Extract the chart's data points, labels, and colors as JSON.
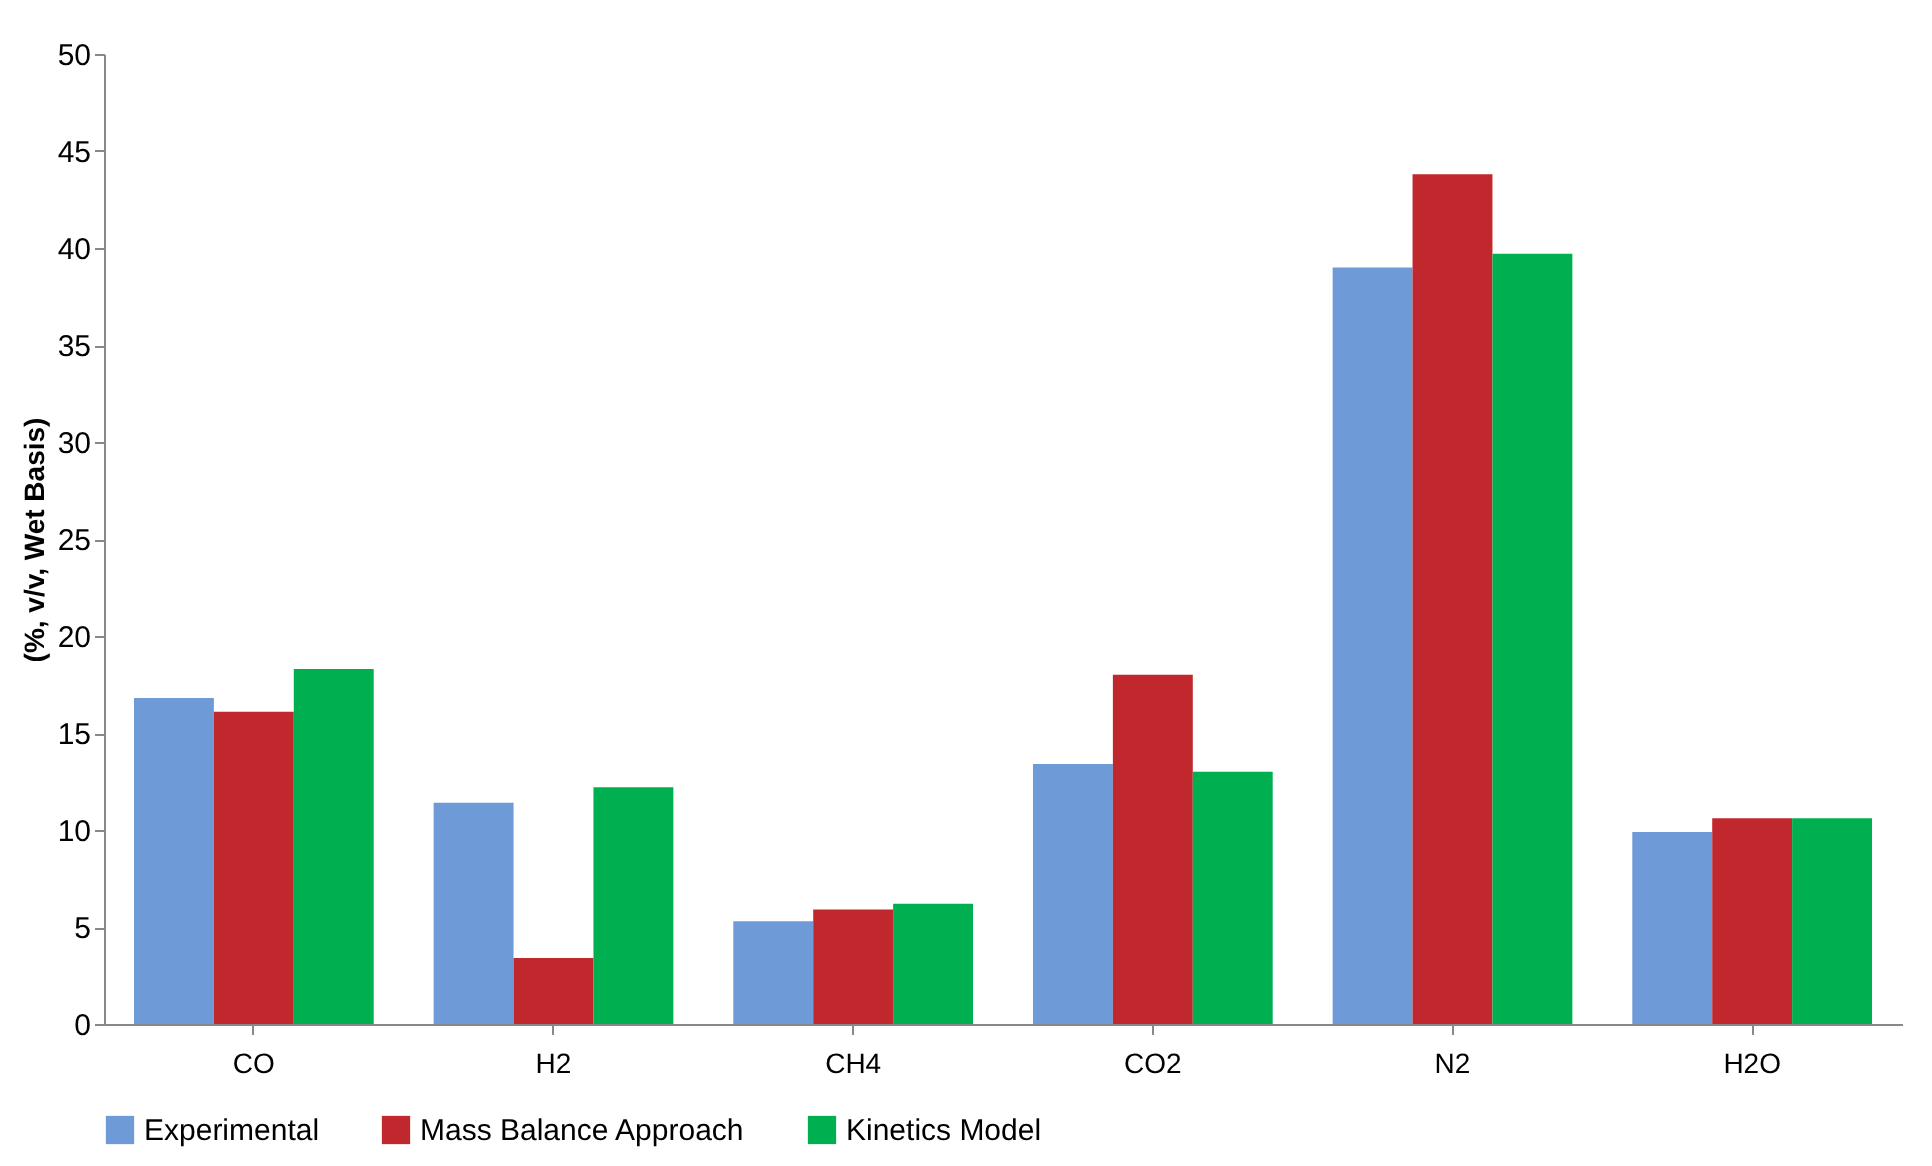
{
  "chart_data": {
    "type": "bar",
    "ylabel": "(%, v/v, Wet Basis)",
    "categories": [
      "CO",
      "H2",
      "CH4",
      "CO2",
      "N2",
      "H2O"
    ],
    "series": [
      {
        "name": "Experimental",
        "color": "#6f9ad8",
        "values": [
          16.8,
          11.4,
          5.3,
          13.4,
          39.0,
          9.9
        ]
      },
      {
        "name": "Mass Balance Approach",
        "color": "#c0282d",
        "values": [
          16.1,
          3.4,
          5.9,
          18.0,
          43.8,
          10.6
        ]
      },
      {
        "name": "Kinetics Model",
        "color": "#00b050",
        "values": [
          18.3,
          12.2,
          6.2,
          13.0,
          39.7,
          10.6
        ]
      }
    ],
    "ylim": [
      0,
      50
    ],
    "yticks": [
      0,
      5,
      10,
      15,
      20,
      25,
      30,
      35,
      40,
      45,
      50
    ],
    "grid": false,
    "legend": "bottom"
  }
}
